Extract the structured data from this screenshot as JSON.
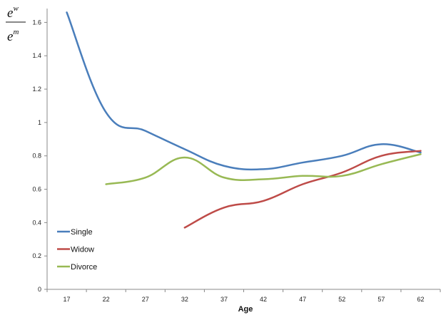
{
  "chart_data": {
    "type": "line",
    "title": "",
    "xlabel": "Age",
    "ylabel": {
      "numerator_base": "e",
      "numerator_sup": "w",
      "denominator_base": "e",
      "denominator_sup": "m"
    },
    "x": [
      17,
      22,
      27,
      32,
      37,
      42,
      47,
      52,
      57,
      62
    ],
    "xlim": [
      14.5,
      64.5
    ],
    "ylim": [
      0,
      1.7
    ],
    "yticks": [
      0,
      0.2,
      0.4,
      0.6,
      0.8,
      1,
      1.2,
      1.4,
      1.6
    ],
    "ytick_labels": [
      "0",
      "0.2",
      "0.4",
      "0.6",
      "0.8",
      "1",
      "1.2",
      "1.4",
      "1.6"
    ],
    "grid": false,
    "legend_position": "bottom-left",
    "series": [
      {
        "name": "Single",
        "color": "#4a7ebb",
        "values": [
          1.66,
          1.06,
          0.95,
          0.84,
          0.74,
          0.72,
          0.76,
          0.8,
          0.87,
          0.82
        ]
      },
      {
        "name": "Widow",
        "color": "#be4b48",
        "values": [
          null,
          null,
          null,
          0.37,
          0.49,
          0.53,
          0.63,
          0.7,
          0.8,
          0.83
        ]
      },
      {
        "name": "Divorce",
        "color": "#98b954",
        "values": [
          null,
          0.63,
          0.67,
          0.79,
          0.67,
          0.66,
          0.68,
          0.68,
          0.75,
          0.81
        ]
      }
    ]
  }
}
